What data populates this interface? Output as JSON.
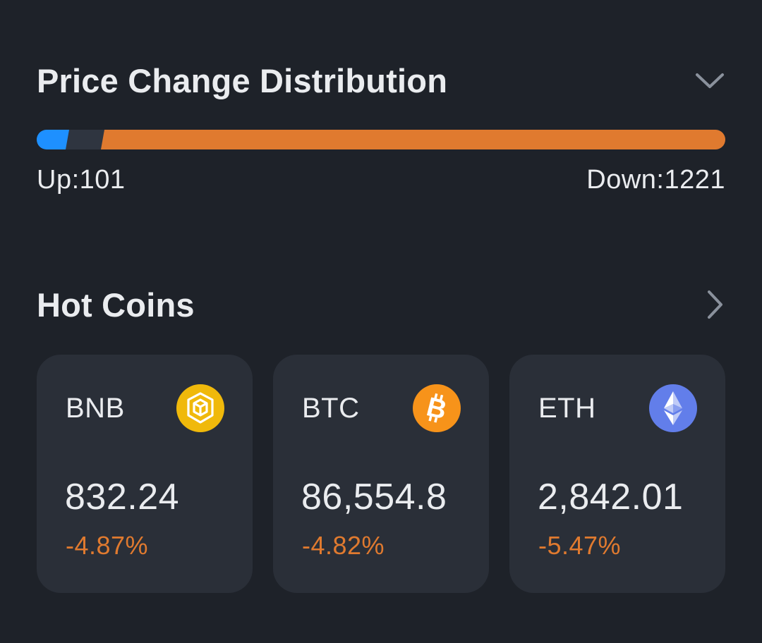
{
  "distribution": {
    "title": "Price Change Distribution",
    "up_label": "Up:101",
    "down_label": "Down:1221",
    "up_count": 101,
    "down_count": 1221,
    "colors": {
      "up": "#1e90ff",
      "down": "#e07a2f",
      "neutral": "#2f3540"
    }
  },
  "hot_coins": {
    "title": "Hot Coins",
    "coins": [
      {
        "symbol": "BNB",
        "price": "832.24",
        "change": "-4.87%",
        "icon": "bnb-icon",
        "icon_color": "#f0b90b"
      },
      {
        "symbol": "BTC",
        "price": "86,554.8",
        "change": "-4.82%",
        "icon": "btc-icon",
        "icon_color": "#f7931a"
      },
      {
        "symbol": "ETH",
        "price": "2,842.01",
        "change": "-5.47%",
        "icon": "eth-icon",
        "icon_color": "#627eea"
      }
    ]
  },
  "colors": {
    "negative": "#e07a2f",
    "card_bg": "#2a2f38",
    "page_bg": "#1e2229",
    "muted": "#8a919c"
  }
}
